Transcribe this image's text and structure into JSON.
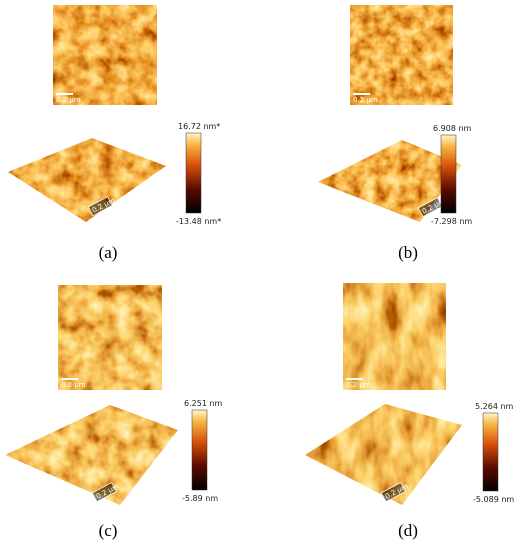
{
  "panels": [
    {
      "label": "(a)",
      "scale_bar_2d": "0.2 µm",
      "scale_bar_3d": "0.2 µm",
      "colorbar_max": "16.72 nm*",
      "colorbar_min": "-13.48 nm*"
    },
    {
      "label": "(b)",
      "scale_bar_2d": "0.2 µm",
      "scale_bar_3d": "0.2 µm",
      "colorbar_max": "6.908 nm",
      "colorbar_min": "-7.298 nm"
    },
    {
      "label": "(c)",
      "scale_bar_2d": "0.2 µm",
      "scale_bar_3d": "0.2 µm",
      "colorbar_max": "6.251 nm",
      "colorbar_min": "-5.89 nm"
    },
    {
      "label": "(d)",
      "scale_bar_2d": "0.2 µm",
      "scale_bar_3d": "0.2 µm",
      "colorbar_max": "5.264 nm",
      "colorbar_min": "-5.089 nm"
    }
  ]
}
